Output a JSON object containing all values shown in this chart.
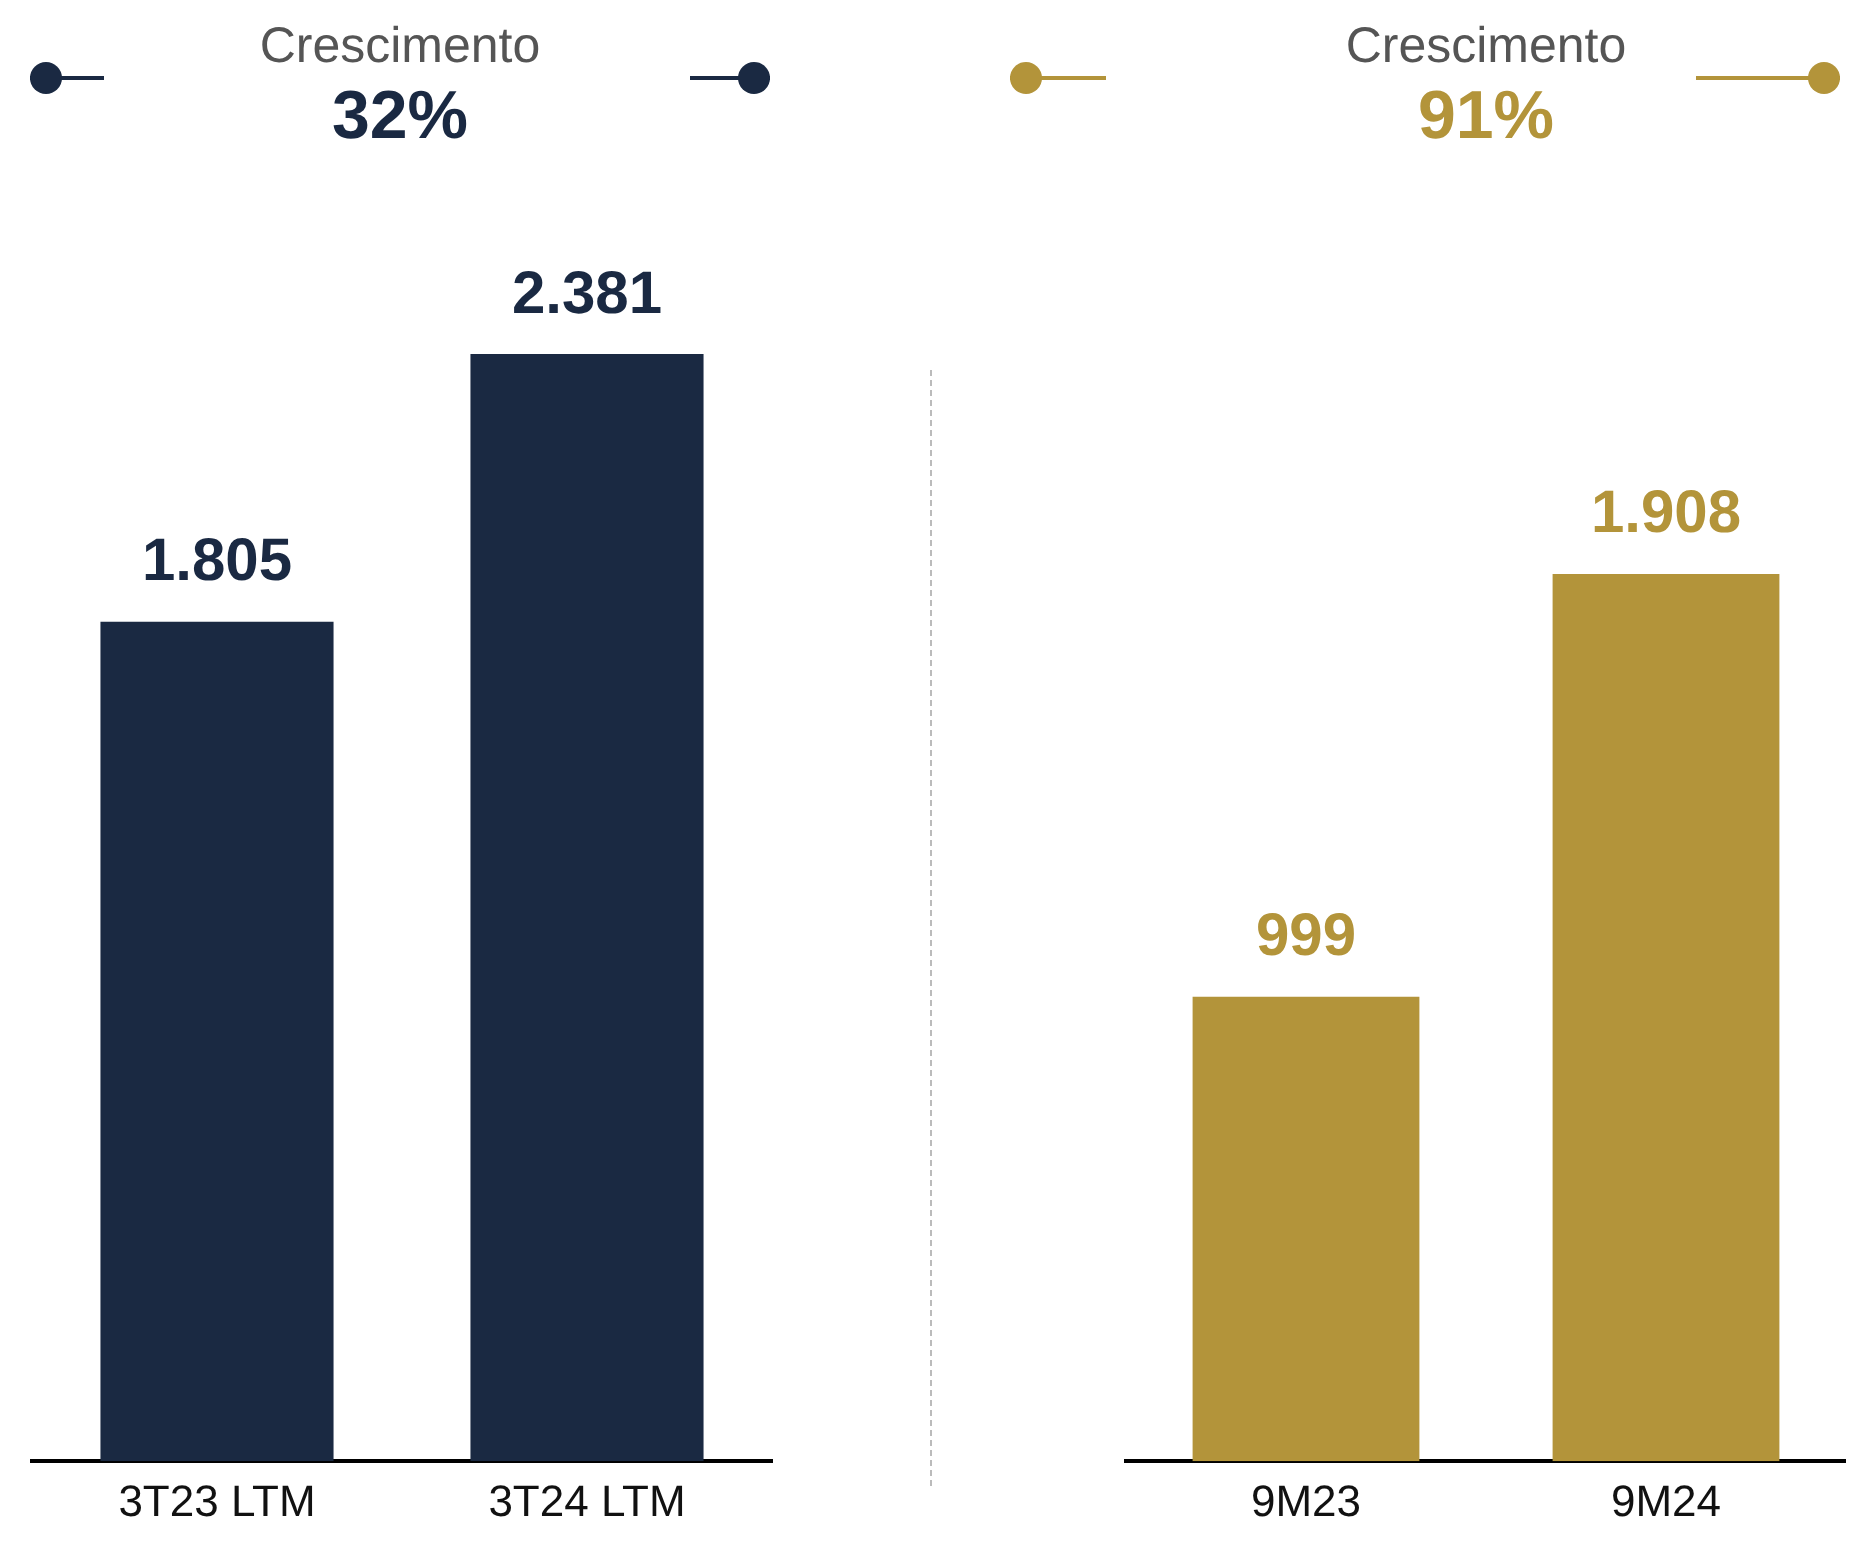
{
  "chart_data": [
    {
      "type": "bar",
      "title": "Crescimento",
      "subtitle": "32%",
      "categories": [
        "3T23 LTM",
        "3T24 LTM"
      ],
      "values": [
        1805,
        2381
      ],
      "value_labels": [
        "1.805",
        "2.381"
      ],
      "color": "#1a2942"
    },
    {
      "type": "bar",
      "title": "Crescimento",
      "subtitle": "91%",
      "categories": [
        "9M23",
        "9M24"
      ],
      "values": [
        999,
        1908
      ],
      "value_labels": [
        "999",
        "1.908"
      ],
      "color": "#b3943a"
    }
  ]
}
